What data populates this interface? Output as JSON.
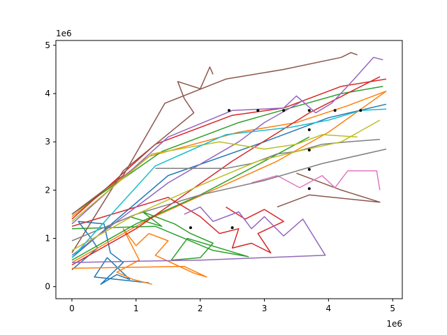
{
  "chart_data": {
    "type": "line",
    "title": "",
    "xlabel": "",
    "ylabel": "",
    "x_offset_label": "1e6",
    "y_offset_label": "1e6",
    "xlim": [
      -0.25,
      5.15
    ],
    "ylim": [
      -0.25,
      5.1
    ],
    "xticks": [
      0,
      1,
      2,
      3,
      4,
      5
    ],
    "yticks": [
      0,
      1,
      2,
      3,
      4,
      5
    ],
    "grid": false,
    "legend": "none",
    "series": [
      {
        "color": "#1f77b4",
        "points": [
          [
            0,
            0.35
          ],
          [
            0.4,
            0.8
          ],
          [
            0.3,
            1.0
          ],
          [
            0.1,
            1.35
          ],
          [
            0.5,
            1.3
          ],
          [
            0.6,
            0.7
          ],
          [
            0.8,
            0.5
          ],
          [
            0.45,
            0.05
          ],
          [
            0.7,
            0.25
          ],
          [
            0.9,
            0.15
          ],
          [
            0.55,
            0.6
          ],
          [
            0.35,
            0.2
          ],
          [
            1.2,
            0.08
          ]
        ]
      },
      {
        "color": "#1f77b4",
        "points": [
          [
            0,
            0.6
          ],
          [
            1.5,
            2.3
          ],
          [
            3.0,
            3.0
          ],
          [
            4.0,
            3.5
          ],
          [
            4.9,
            3.78
          ]
        ]
      },
      {
        "color": "#ff7f0e",
        "points": [
          [
            0,
            0.38
          ],
          [
            1.75,
            0.42
          ],
          [
            2.1,
            0.2
          ],
          [
            1.9,
            0.28
          ],
          [
            1.3,
            0.65
          ],
          [
            1.5,
            0.95
          ],
          [
            1.2,
            1.1
          ],
          [
            1.0,
            0.85
          ],
          [
            0.8,
            1.2
          ],
          [
            1.05,
            0.55
          ],
          [
            0.7,
            0.3
          ],
          [
            0.95,
            0.15
          ],
          [
            1.25,
            0.05
          ]
        ]
      },
      {
        "color": "#ff7f0e",
        "points": [
          [
            0,
            0.5
          ],
          [
            1.2,
            1.4
          ],
          [
            2.2,
            2.0
          ],
          [
            3.2,
            2.6
          ],
          [
            4.0,
            3.2
          ],
          [
            4.9,
            4.05
          ]
        ]
      },
      {
        "color": "#ff7f0e",
        "points": [
          [
            0,
            1.45
          ],
          [
            1.2,
            2.7
          ],
          [
            2.6,
            3.2
          ],
          [
            3.5,
            3.4
          ],
          [
            4.3,
            3.75
          ],
          [
            4.9,
            4.05
          ]
        ]
      },
      {
        "color": "#2ca02c",
        "points": [
          [
            0,
            1.2
          ],
          [
            1.3,
            1.25
          ],
          [
            2.2,
            0.75
          ],
          [
            2.75,
            0.62
          ],
          [
            1.8,
            1.0
          ],
          [
            1.55,
            0.55
          ],
          [
            2.0,
            0.6
          ],
          [
            2.2,
            0.9
          ],
          [
            1.85,
            1.1
          ],
          [
            1.6,
            1.3
          ],
          [
            1.1,
            1.55
          ],
          [
            1.4,
            1.25
          ],
          [
            0.9,
            1.45
          ]
        ]
      },
      {
        "color": "#2ca02c",
        "points": [
          [
            0,
            1.5
          ],
          [
            1.4,
            2.8
          ],
          [
            2.6,
            3.4
          ],
          [
            3.4,
            3.7
          ],
          [
            4.2,
            4.0
          ],
          [
            4.85,
            4.15
          ]
        ]
      },
      {
        "color": "#2ca02c",
        "points": [
          [
            0,
            0.55
          ],
          [
            1.0,
            1.3
          ],
          [
            2.0,
            1.9
          ],
          [
            3.0,
            2.6
          ],
          [
            3.7,
            3.1
          ]
        ]
      },
      {
        "color": "#d62728",
        "points": [
          [
            0,
            0.45
          ],
          [
            1.0,
            1.2
          ],
          [
            2.5,
            2.6
          ],
          [
            3.7,
            3.6
          ],
          [
            4.8,
            4.35
          ]
        ]
      },
      {
        "color": "#d62728",
        "points": [
          [
            0,
            1.4
          ],
          [
            1.3,
            2.95
          ],
          [
            2.5,
            3.55
          ],
          [
            3.3,
            3.7
          ],
          [
            4.2,
            4.15
          ],
          [
            4.9,
            4.3
          ]
        ]
      },
      {
        "color": "#d62728",
        "points": [
          [
            0,
            1.25
          ],
          [
            1.5,
            1.85
          ],
          [
            2.0,
            1.45
          ],
          [
            2.3,
            1.1
          ],
          [
            2.6,
            1.2
          ],
          [
            2.5,
            0.8
          ],
          [
            2.8,
            0.9
          ],
          [
            3.1,
            0.7
          ],
          [
            2.9,
            1.1
          ],
          [
            3.3,
            1.35
          ],
          [
            3.0,
            1.6
          ],
          [
            2.7,
            1.4
          ],
          [
            2.4,
            1.65
          ]
        ]
      },
      {
        "color": "#9467bd",
        "points": [
          [
            0,
            0.5
          ],
          [
            2.0,
            0.55
          ],
          [
            3.95,
            0.65
          ],
          [
            3.6,
            1.4
          ],
          [
            3.3,
            1.05
          ],
          [
            3.0,
            1.45
          ],
          [
            2.8,
            1.2
          ],
          [
            2.6,
            1.55
          ],
          [
            2.2,
            1.35
          ],
          [
            2.0,
            1.65
          ],
          [
            1.75,
            1.5
          ]
        ]
      },
      {
        "color": "#9467bd",
        "points": [
          [
            0,
            1.3
          ],
          [
            1.5,
            3.1
          ],
          [
            2.5,
            3.65
          ],
          [
            3.3,
            3.7
          ],
          [
            3.5,
            3.95
          ],
          [
            3.8,
            3.6
          ],
          [
            4.05,
            3.8
          ],
          [
            4.4,
            4.3
          ],
          [
            4.7,
            4.75
          ],
          [
            4.85,
            4.7
          ]
        ]
      },
      {
        "color": "#9467bd",
        "points": [
          [
            0,
            0.65
          ],
          [
            1.5,
            2.15
          ],
          [
            2.6,
            3.0
          ],
          [
            3.0,
            3.4
          ],
          [
            3.6,
            3.85
          ]
        ]
      },
      {
        "color": "#8c564b",
        "points": [
          [
            0,
            1.5
          ],
          [
            0.8,
            2.3
          ],
          [
            1.45,
            3.8
          ],
          [
            2.4,
            4.3
          ],
          [
            3.3,
            4.5
          ],
          [
            4.2,
            4.75
          ],
          [
            4.35,
            4.85
          ],
          [
            4.45,
            4.8
          ]
        ]
      },
      {
        "color": "#8c564b",
        "points": [
          [
            0,
            0.7
          ],
          [
            0.8,
            2.4
          ],
          [
            1.9,
            3.6
          ],
          [
            1.75,
            3.9
          ],
          [
            1.65,
            4.25
          ],
          [
            2.0,
            4.1
          ],
          [
            2.15,
            4.55
          ],
          [
            2.2,
            4.4
          ]
        ]
      },
      {
        "color": "#8c564b",
        "points": [
          [
            3.5,
            2.35
          ],
          [
            4.2,
            2.0
          ],
          [
            4.8,
            1.75
          ],
          [
            3.7,
            1.9
          ],
          [
            3.2,
            1.65
          ]
        ]
      },
      {
        "color": "#e377c2",
        "points": [
          [
            2.8,
            2.15
          ],
          [
            3.2,
            2.3
          ],
          [
            3.55,
            2.05
          ],
          [
            3.9,
            2.3
          ],
          [
            4.1,
            2.05
          ],
          [
            4.3,
            2.4
          ],
          [
            4.75,
            2.4
          ],
          [
            4.8,
            2.0
          ]
        ]
      },
      {
        "color": "#7f7f7f",
        "points": [
          [
            0,
            0.95
          ],
          [
            1.0,
            1.5
          ],
          [
            2.0,
            1.9
          ],
          [
            3.0,
            2.2
          ],
          [
            3.9,
            2.55
          ],
          [
            4.9,
            2.85
          ]
        ]
      },
      {
        "color": "#7f7f7f",
        "points": [
          [
            1.3,
            2.45
          ],
          [
            2.4,
            2.45
          ],
          [
            2.8,
            2.55
          ],
          [
            3.2,
            2.75
          ],
          [
            3.5,
            2.8
          ],
          [
            3.9,
            2.95
          ],
          [
            4.3,
            3.0
          ],
          [
            4.8,
            3.05
          ]
        ]
      },
      {
        "color": "#bcbd22",
        "points": [
          [
            0,
            0.75
          ],
          [
            1.0,
            1.5
          ],
          [
            2.0,
            2.1
          ],
          [
            2.9,
            2.6
          ],
          [
            3.5,
            2.8
          ],
          [
            4.2,
            3.0
          ],
          [
            4.8,
            3.45
          ]
        ]
      },
      {
        "color": "#bcbd22",
        "points": [
          [
            0,
            1.35
          ],
          [
            1.25,
            2.75
          ],
          [
            2.3,
            3.0
          ],
          [
            3.0,
            2.85
          ],
          [
            3.5,
            2.95
          ],
          [
            3.9,
            3.15
          ],
          [
            4.45,
            3.1
          ]
        ]
      },
      {
        "color": "#17becf",
        "points": [
          [
            0,
            0.6
          ],
          [
            1.3,
            2.5
          ],
          [
            2.4,
            3.15
          ],
          [
            3.4,
            3.3
          ],
          [
            4.0,
            3.45
          ],
          [
            4.5,
            3.65
          ],
          [
            4.9,
            3.68
          ]
        ]
      }
    ],
    "markers": [
      [
        1.85,
        1.22
      ],
      [
        2.5,
        1.22
      ],
      [
        2.45,
        3.65
      ],
      [
        2.9,
        3.65
      ],
      [
        3.3,
        3.65
      ],
      [
        3.7,
        3.65
      ],
      [
        4.1,
        3.65
      ],
      [
        4.5,
        3.65
      ],
      [
        3.7,
        3.25
      ],
      [
        3.7,
        2.83
      ],
      [
        3.7,
        2.43
      ],
      [
        3.7,
        2.03
      ]
    ]
  }
}
